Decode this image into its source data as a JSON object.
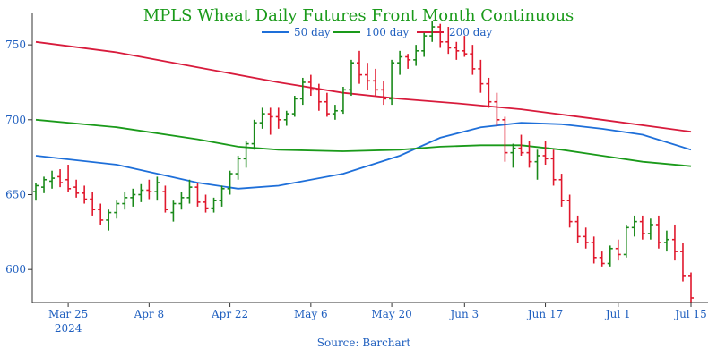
{
  "chart_data": {
    "type": "line",
    "title": "MPLS Wheat Daily Futures Front Month Continuous",
    "source": "Source: Barchart",
    "colors": {
      "up": "#1a8a1a",
      "down": "#e0182d",
      "ma50": "#1e6fd9",
      "ma100": "#1a9a1a",
      "ma200": "#d81b3c",
      "axis": "#333333",
      "text": "#1f5fbf",
      "title": "#1a9a1a"
    },
    "ylim": [
      578,
      768
    ],
    "yticks": [
      600,
      650,
      700,
      750
    ],
    "xlim": [
      0,
      81
    ],
    "xticks": [
      {
        "i": 4,
        "label": "Mar 25",
        "sub": "2024"
      },
      {
        "i": 14,
        "label": "Apr 8",
        "sub": ""
      },
      {
        "i": 24,
        "label": "Apr 22",
        "sub": ""
      },
      {
        "i": 34,
        "label": "May 6",
        "sub": ""
      },
      {
        "i": 44,
        "label": "May 20",
        "sub": ""
      },
      {
        "i": 53,
        "label": "Jun 3",
        "sub": ""
      },
      {
        "i": 63,
        "label": "Jun 17",
        "sub": ""
      },
      {
        "i": 72,
        "label": "Jul 1",
        "sub": ""
      },
      {
        "i": 81,
        "label": "Jul 15",
        "sub": ""
      }
    ],
    "legend": [
      {
        "name": "50 day",
        "color": "#1e6fd9"
      },
      {
        "name": "100 day",
        "color": "#1a9a1a"
      },
      {
        "name": "200 day",
        "color": "#d81b3c"
      }
    ],
    "ohlc": [
      [
        652,
        658,
        646,
        656
      ],
      [
        655,
        662,
        651,
        660
      ],
      [
        659,
        666,
        654,
        661
      ],
      [
        662,
        667,
        655,
        658
      ],
      [
        660,
        670,
        652,
        654
      ],
      [
        655,
        660,
        648,
        651
      ],
      [
        651,
        656,
        644,
        647
      ],
      [
        647,
        652,
        636,
        640
      ],
      [
        640,
        644,
        630,
        633
      ],
      [
        633,
        640,
        626,
        638
      ],
      [
        638,
        646,
        634,
        644
      ],
      [
        644,
        652,
        640,
        648
      ],
      [
        648,
        654,
        642,
        650
      ],
      [
        650,
        657,
        645,
        653
      ],
      [
        653,
        660,
        647,
        652
      ],
      [
        652,
        662,
        646,
        658
      ],
      [
        652,
        656,
        638,
        640
      ],
      [
        638,
        646,
        632,
        644
      ],
      [
        644,
        652,
        640,
        648
      ],
      [
        648,
        660,
        644,
        655
      ],
      [
        655,
        658,
        642,
        645
      ],
      [
        645,
        650,
        638,
        641
      ],
      [
        641,
        648,
        638,
        646
      ],
      [
        646,
        656,
        642,
        654
      ],
      [
        654,
        666,
        650,
        664
      ],
      [
        664,
        676,
        660,
        674
      ],
      [
        674,
        686,
        668,
        684
      ],
      [
        684,
        700,
        680,
        698
      ],
      [
        698,
        708,
        694,
        704
      ],
      [
        704,
        708,
        690,
        702
      ],
      [
        702,
        708,
        694,
        700
      ],
      [
        700,
        706,
        696,
        704
      ],
      [
        704,
        716,
        702,
        714
      ],
      [
        714,
        728,
        710,
        725
      ],
      [
        725,
        730,
        716,
        720
      ],
      [
        720,
        724,
        706,
        712
      ],
      [
        712,
        718,
        702,
        704
      ],
      [
        704,
        710,
        700,
        706
      ],
      [
        706,
        722,
        704,
        720
      ],
      [
        720,
        740,
        716,
        738
      ],
      [
        738,
        746,
        724,
        730
      ],
      [
        730,
        738,
        720,
        726
      ],
      [
        726,
        734,
        716,
        720
      ],
      [
        720,
        726,
        710,
        714
      ],
      [
        714,
        740,
        710,
        738
      ],
      [
        738,
        746,
        730,
        742
      ],
      [
        742,
        744,
        734,
        740
      ],
      [
        740,
        750,
        736,
        746
      ],
      [
        746,
        758,
        742,
        756
      ],
      [
        756,
        766,
        752,
        762
      ],
      [
        762,
        764,
        748,
        752
      ],
      [
        752,
        762,
        744,
        748
      ],
      [
        748,
        752,
        740,
        746
      ],
      [
        746,
        756,
        742,
        744
      ],
      [
        744,
        750,
        730,
        734
      ],
      [
        734,
        740,
        718,
        724
      ],
      [
        724,
        728,
        708,
        712
      ],
      [
        712,
        718,
        696,
        700
      ],
      [
        700,
        702,
        672,
        678
      ],
      [
        678,
        684,
        668,
        681
      ],
      [
        681,
        690,
        676,
        678
      ],
      [
        678,
        686,
        668,
        672
      ],
      [
        672,
        680,
        660,
        676
      ],
      [
        676,
        686,
        670,
        674
      ],
      [
        674,
        680,
        656,
        660
      ],
      [
        660,
        664,
        642,
        646
      ],
      [
        646,
        650,
        628,
        632
      ],
      [
        632,
        636,
        618,
        622
      ],
      [
        622,
        628,
        614,
        618
      ],
      [
        618,
        622,
        604,
        608
      ],
      [
        608,
        612,
        602,
        604
      ],
      [
        604,
        616,
        602,
        614
      ],
      [
        614,
        620,
        606,
        610
      ],
      [
        610,
        630,
        608,
        628
      ],
      [
        628,
        636,
        622,
        632
      ],
      [
        632,
        636,
        620,
        624
      ],
      [
        624,
        634,
        620,
        630
      ],
      [
        630,
        636,
        614,
        618
      ],
      [
        618,
        626,
        612,
        620
      ],
      [
        620,
        630,
        606,
        612
      ],
      [
        612,
        618,
        592,
        596
      ],
      [
        596,
        598,
        578,
        581
      ]
    ],
    "series": [
      {
        "name": "50 day",
        "x": [
          0,
          10,
          20,
          25,
          30,
          38,
          45,
          50,
          55,
          60,
          65,
          70,
          75,
          81
        ],
        "values": [
          676,
          670,
          658,
          654,
          656,
          664,
          676,
          688,
          695,
          698,
          697,
          694,
          690,
          680
        ]
      },
      {
        "name": "100 day",
        "x": [
          0,
          10,
          20,
          25,
          30,
          38,
          45,
          50,
          55,
          60,
          65,
          70,
          75,
          81
        ],
        "values": [
          700,
          695,
          687,
          682,
          680,
          679,
          680,
          682,
          683,
          683,
          680,
          676,
          672,
          669
        ]
      },
      {
        "name": "200 day",
        "x": [
          0,
          10,
          20,
          30,
          38,
          45,
          52,
          60,
          70,
          81
        ],
        "values": [
          752,
          745,
          735,
          725,
          718,
          714,
          711,
          707,
          700,
          692
        ]
      }
    ]
  }
}
